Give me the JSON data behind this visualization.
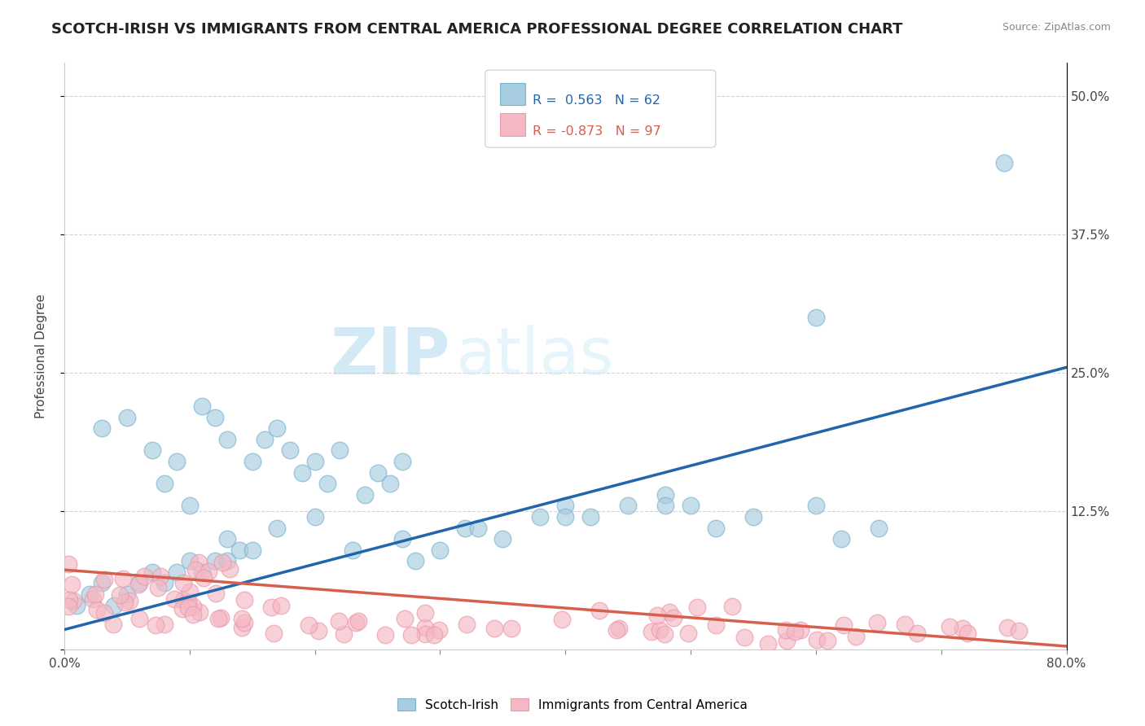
{
  "title": "SCOTCH-IRISH VS IMMIGRANTS FROM CENTRAL AMERICA PROFESSIONAL DEGREE CORRELATION CHART",
  "source": "Source: ZipAtlas.com",
  "ylabel": "Professional Degree",
  "xlim": [
    0.0,
    0.8
  ],
  "ylim": [
    0.0,
    0.53
  ],
  "ytick_positions": [
    0.0,
    0.125,
    0.25,
    0.375,
    0.5
  ],
  "yticklabels": [
    "",
    "12.5%",
    "25.0%",
    "37.5%",
    "50.0%"
  ],
  "legend_r1": "0.563",
  "legend_n1": "62",
  "legend_r2": "-0.873",
  "legend_n2": "97",
  "blue_fill": "#a8cce0",
  "blue_edge": "#7ab3d0",
  "pink_fill": "#f5b8c4",
  "pink_edge": "#e89aaa",
  "blue_line_color": "#2166ac",
  "pink_line_color": "#d6604d",
  "blue_line_x0": 0.0,
  "blue_line_y0": 0.018,
  "blue_line_x1": 0.8,
  "blue_line_y1": 0.255,
  "pink_line_x0": 0.0,
  "pink_line_y0": 0.072,
  "pink_line_x1": 0.8,
  "pink_line_y1": 0.003,
  "background_color": "#ffffff",
  "grid_color": "#d0d0d0",
  "title_fontsize": 13,
  "axis_label_fontsize": 11,
  "tick_fontsize": 11,
  "source_fontsize": 9,
  "watermark_zip_color": "#b0d8f0",
  "watermark_atlas_color": "#c8e8f8"
}
